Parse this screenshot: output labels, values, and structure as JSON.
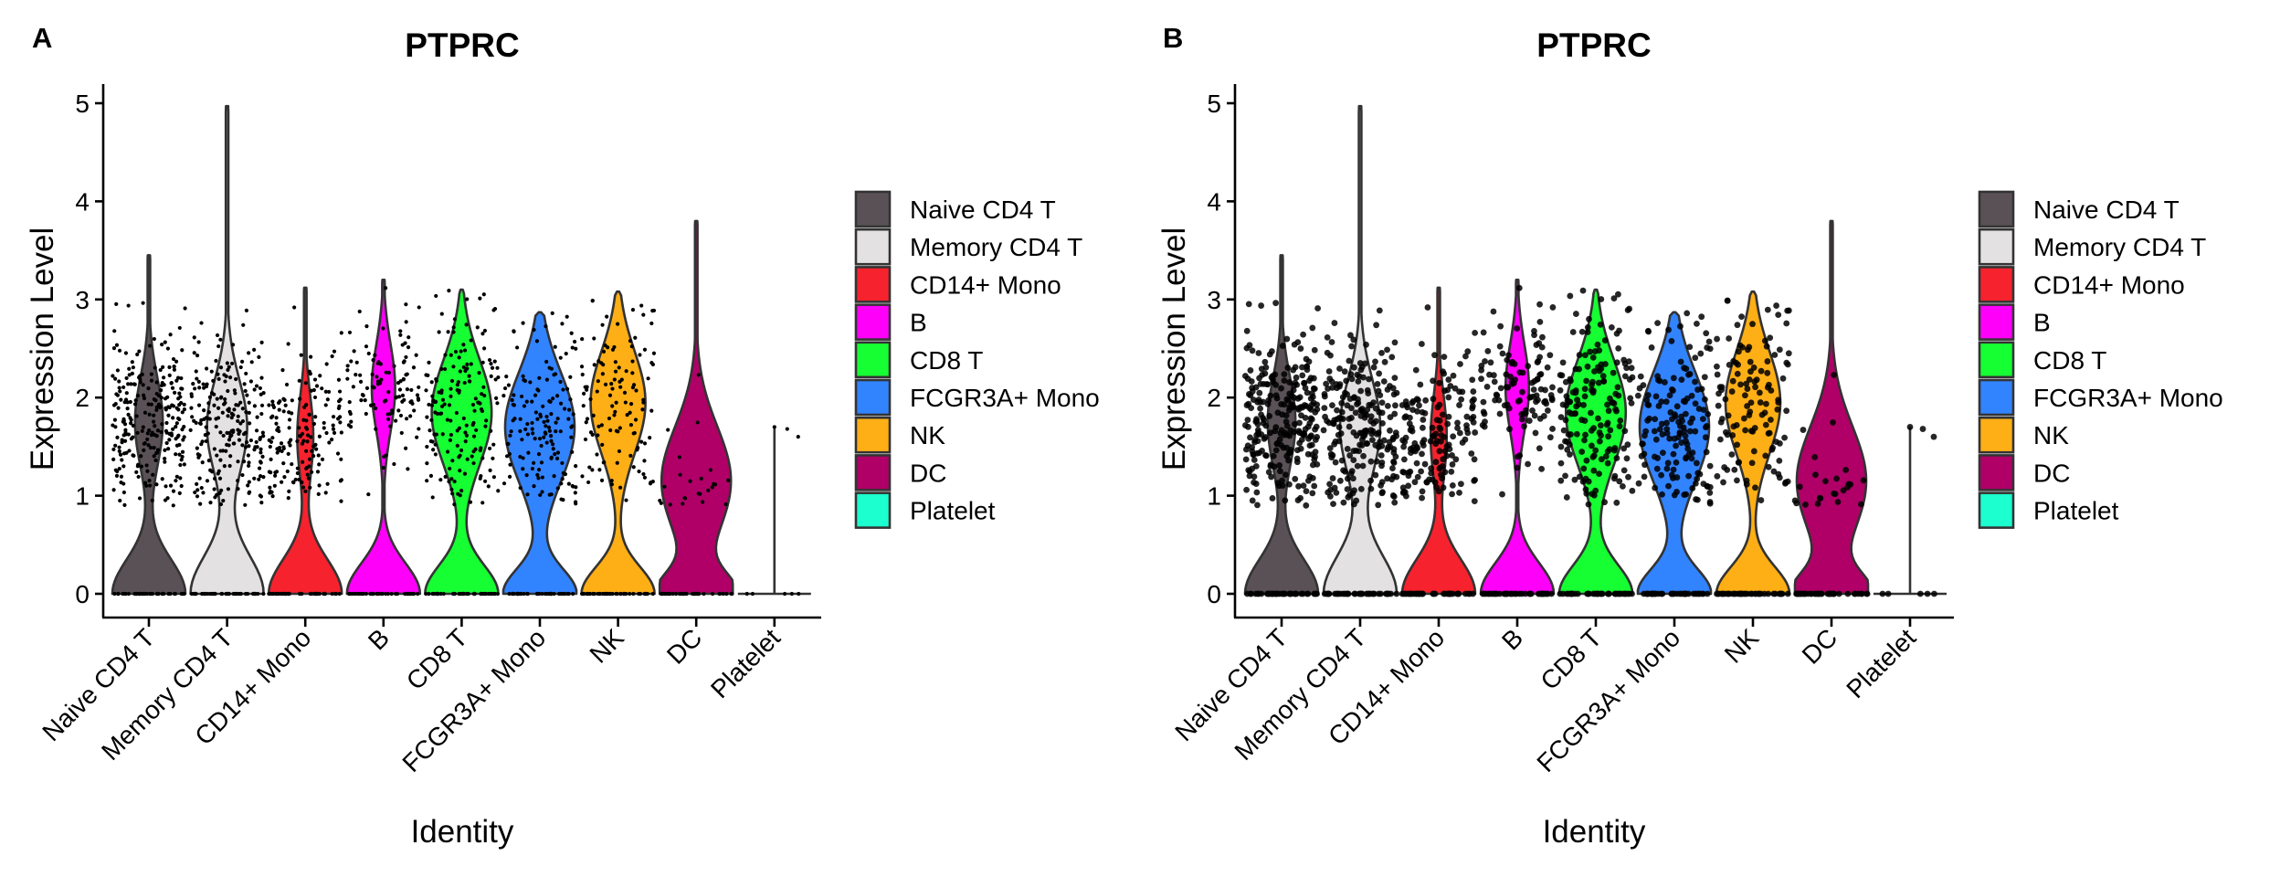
{
  "chart_data": [
    {
      "panel_label": "A",
      "type": "violin",
      "title": "PTPRC",
      "xlabel": "Identity",
      "ylabel": "Expression Level",
      "ylim": [
        -0.3,
        5.2
      ],
      "yticks": [
        0,
        1,
        2,
        3,
        4,
        5
      ],
      "grid": false,
      "legend_position": "right",
      "point_style": "small",
      "categories": [
        "Naive CD4 T",
        "Memory CD4 T",
        "CD14+ Mono",
        "B",
        "CD8 T",
        "FCGR3A+ Mono",
        "NK",
        "DC",
        "Platelet"
      ],
      "series": [
        {
          "name": "Naive CD4 T",
          "color": "#5A5156",
          "max": 3.45,
          "zero_width": 0.95,
          "lower_mode_peak": 0.0,
          "upper_mode": 1.75,
          "upper_width": 0.38,
          "neck": 0.9,
          "n_points": 260
        },
        {
          "name": "Memory CD4 T",
          "color": "#E4E1E3",
          "max": 4.97,
          "zero_width": 0.95,
          "lower_mode_peak": 0.0,
          "upper_mode": 1.7,
          "upper_width": 0.55,
          "neck": 1.0,
          "n_points": 220
        },
        {
          "name": "CD14+ Mono",
          "color": "#F6222E",
          "max": 3.12,
          "zero_width": 0.95,
          "lower_mode_peak": 0.0,
          "upper_mode": 1.6,
          "upper_width": 0.22,
          "neck": 0.9,
          "n_points": 160
        },
        {
          "name": "B",
          "color": "#FE00FA",
          "max": 3.2,
          "zero_width": 0.95,
          "lower_mode_peak": 0.0,
          "upper_mode": 2.1,
          "upper_width": 0.32,
          "neck": 0.8,
          "n_points": 110
        },
        {
          "name": "CD8 T",
          "color": "#16FF32",
          "max": 3.1,
          "zero_width": 0.95,
          "lower_mode_peak": 0.0,
          "upper_mode": 1.85,
          "upper_width": 0.82,
          "neck": 0.75,
          "n_points": 170
        },
        {
          "name": "FCGR3A+ Mono",
          "color": "#3283FE",
          "max": 2.87,
          "zero_width": 0.95,
          "lower_mode_peak": 0.0,
          "upper_mode": 1.7,
          "upper_width": 0.95,
          "neck": 0.65,
          "n_points": 150
        },
        {
          "name": "NK",
          "color": "#FEAF16",
          "max": 3.08,
          "zero_width": 0.95,
          "lower_mode_peak": 0.0,
          "upper_mode": 1.95,
          "upper_width": 0.75,
          "neck": 0.7,
          "n_points": 120
        },
        {
          "name": "DC",
          "color": "#B00068",
          "max": 3.8,
          "zero_width": 0.95,
          "lower_mode_peak": 0.0,
          "upper_mode": 1.15,
          "upper_width": 0.95,
          "neck": 0.55,
          "n_points": 24
        },
        {
          "name": "Platelet",
          "color": "#1CFFCE",
          "max": 1.7,
          "zero_width": 0.0,
          "lower_mode_peak": 0.0,
          "upper_mode": 0.0,
          "upper_width": 0.0,
          "neck": 0.0,
          "n_points": 3
        }
      ],
      "legend": [
        "Naive CD4 T",
        "Memory CD4 T",
        "CD14+ Mono",
        "B",
        "CD8 T",
        "FCGR3A+ Mono",
        "NK",
        "DC",
        "Platelet"
      ]
    },
    {
      "panel_label": "B",
      "type": "violin",
      "title": "PTPRC",
      "xlabel": "Identity",
      "ylabel": "Expression Level",
      "ylim": [
        -0.3,
        5.2
      ],
      "yticks": [
        0,
        1,
        2,
        3,
        4,
        5
      ],
      "grid": false,
      "legend_position": "right",
      "point_style": "large",
      "categories": [
        "Naive CD4 T",
        "Memory CD4 T",
        "CD14+ Mono",
        "B",
        "CD8 T",
        "FCGR3A+ Mono",
        "NK",
        "DC",
        "Platelet"
      ],
      "series_ref": "same as panel A",
      "legend": [
        "Naive CD4 T",
        "Memory CD4 T",
        "CD14+ Mono",
        "B",
        "CD8 T",
        "FCGR3A+ Mono",
        "NK",
        "DC",
        "Platelet"
      ]
    }
  ]
}
